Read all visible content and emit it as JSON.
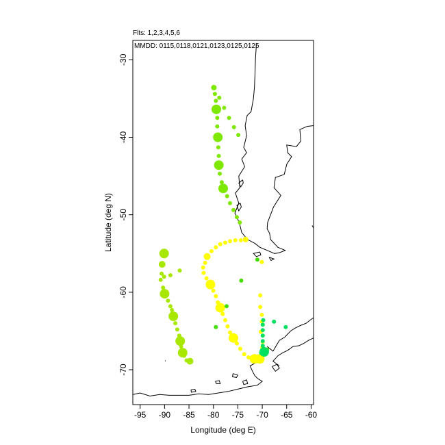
{
  "header": {
    "flights": "Flts: 1,2,3,4,5,6",
    "dates": "MMDD: 0115,0118,0121,0123,0125,0125"
  },
  "chart_data": {
    "type": "scatter",
    "title": "",
    "xlabel": "Longitude (deg E)",
    "ylabel": "Latitude (deg N)",
    "xlim": [
      -96.5,
      -59.5
    ],
    "ylim": [
      -74.5,
      -27.5
    ],
    "xticks": [
      -95,
      -90,
      -85,
      -80,
      -75,
      -70,
      -65,
      -60
    ],
    "yticks": [
      -30,
      -40,
      -50,
      -60,
      -70
    ],
    "xtick_labels": [
      "-95",
      "-90",
      "-85",
      "-80",
      "-75",
      "-70",
      "-65",
      "-60"
    ],
    "ytick_labels": [
      "-30",
      "-40",
      "-50",
      "-60",
      "-70"
    ],
    "grid": false,
    "legend": "none",
    "series": [
      {
        "color": "#7fe800",
        "points": [
          [
            -79.9,
            -33.6
          ],
          [
            -79.7,
            -34.4
          ],
          [
            -79.5,
            -35.3
          ],
          [
            -79.4,
            -36.4
          ],
          [
            -79.2,
            -37.5
          ],
          [
            -79.2,
            -38.6
          ],
          [
            -79.1,
            -40.0
          ],
          [
            -79.0,
            -41.3
          ],
          [
            -78.9,
            -42.4
          ],
          [
            -78.9,
            -43.6
          ],
          [
            -78.7,
            -44.7
          ],
          [
            -78.3,
            -45.8
          ],
          [
            -78.0,
            -46.6
          ],
          [
            -77.2,
            -47.6
          ],
          [
            -76.6,
            -48.5
          ],
          [
            -75.9,
            -49.4
          ],
          [
            -75.2,
            -50.3
          ],
          [
            -74.6,
            -51.0
          ],
          [
            -78.8,
            -34.9
          ],
          [
            -77.8,
            -36.2
          ],
          [
            -76.8,
            -37.5
          ],
          [
            -75.8,
            -38.7
          ],
          [
            -74.9,
            -39.7
          ]
        ],
        "sizes": [
          4,
          3,
          3,
          7,
          3,
          3,
          7,
          3,
          3,
          7,
          3,
          3,
          7,
          3,
          3,
          3,
          3,
          3,
          3,
          3,
          3,
          3,
          3
        ]
      },
      {
        "color": "#a8e800",
        "points": [
          [
            -90.1,
            -55.0
          ],
          [
            -90.5,
            -56.4
          ],
          [
            -90.6,
            -57.6
          ],
          [
            -90.8,
            -58.4
          ],
          [
            -90.3,
            -59.4
          ],
          [
            -90.0,
            -60.2
          ],
          [
            -89.3,
            -61.1
          ],
          [
            -88.8,
            -61.8
          ],
          [
            -88.5,
            -62.3
          ],
          [
            -88.2,
            -63.1
          ],
          [
            -87.8,
            -64.0
          ],
          [
            -87.4,
            -64.8
          ],
          [
            -87.0,
            -65.6
          ],
          [
            -86.8,
            -66.3
          ],
          [
            -86.6,
            -67.0
          ],
          [
            -86.3,
            -67.8
          ],
          [
            -86.0,
            -68.2
          ],
          [
            -85.5,
            -68.8
          ],
          [
            -84.8,
            -68.9
          ],
          [
            -88.8,
            -57.8
          ],
          [
            -86.9,
            -57.2
          ],
          [
            -90.1,
            -58.0
          ]
        ],
        "sizes": [
          7,
          5,
          3,
          3,
          3,
          7,
          3,
          3,
          3,
          7,
          3,
          3,
          3,
          7,
          3,
          7,
          3,
          3,
          5,
          3,
          3,
          3
        ]
      },
      {
        "color": "#ffff00",
        "points": [
          [
            -73.4,
            -53.2
          ],
          [
            -74.4,
            -53.3
          ],
          [
            -75.5,
            -53.3
          ],
          [
            -76.6,
            -53.4
          ],
          [
            -77.6,
            -53.6
          ],
          [
            -78.6,
            -53.8
          ],
          [
            -79.5,
            -54.2
          ],
          [
            -80.4,
            -54.7
          ],
          [
            -81.3,
            -55.4
          ],
          [
            -81.7,
            -56.2
          ],
          [
            -82.1,
            -56.8
          ],
          [
            -82.0,
            -57.5
          ],
          [
            -81.4,
            -58.2
          ],
          [
            -80.6,
            -59.0
          ],
          [
            -80.0,
            -59.8
          ],
          [
            -79.5,
            -60.5
          ],
          [
            -79.1,
            -61.3
          ],
          [
            -78.6,
            -62.0
          ],
          [
            -78.1,
            -62.8
          ],
          [
            -77.6,
            -63.6
          ],
          [
            -77.1,
            -64.4
          ],
          [
            -76.6,
            -65.2
          ],
          [
            -75.9,
            -65.9
          ],
          [
            -75.2,
            -66.6
          ],
          [
            -74.5,
            -67.3
          ],
          [
            -73.7,
            -68.0
          ],
          [
            -72.8,
            -68.4
          ],
          [
            -71.6,
            -68.6
          ],
          [
            -70.5,
            -68.6
          ],
          [
            -70.1,
            -68.3
          ],
          [
            -70.4,
            -60.4
          ],
          [
            -70.4,
            -61.9
          ],
          [
            -70.1,
            -56.1
          ],
          [
            -70.1,
            -62.9
          ],
          [
            -70.1,
            -63.8
          ],
          [
            -70.3,
            -65.1
          ],
          [
            -69.9,
            -66.4
          ],
          [
            -70.0,
            -67.1
          ]
        ],
        "sizes": [
          4,
          3,
          3,
          3,
          3,
          3,
          3,
          3,
          5,
          3,
          3,
          3,
          3,
          7,
          3,
          3,
          3,
          7,
          3,
          3,
          3,
          3,
          7,
          3,
          3,
          3,
          3,
          7,
          7,
          3,
          3,
          3,
          3,
          3,
          3,
          3,
          3,
          3
        ]
      },
      {
        "color": "#44dd00",
        "points": [
          [
            -71.0,
            -55.8
          ],
          [
            -79.5,
            -64.5
          ],
          [
            -77.3,
            -61.8
          ],
          [
            -74.3,
            -58.5
          ],
          [
            -69.0,
            -67.4
          ]
        ],
        "sizes": [
          3,
          3,
          3,
          3,
          3
        ]
      },
      {
        "color": "#00e060",
        "points": [
          [
            -69.6,
            -67.7
          ],
          [
            -69.9,
            -66.9
          ],
          [
            -69.9,
            -66.3
          ],
          [
            -69.9,
            -65.6
          ],
          [
            -69.9,
            -64.9
          ],
          [
            -69.9,
            -64.2
          ],
          [
            -69.8,
            -63.6
          ],
          [
            -67.6,
            -63.8
          ],
          [
            -65.2,
            -64.5
          ],
          [
            -70.1,
            -67.8
          ]
        ],
        "sizes": [
          7,
          3,
          3,
          3,
          3,
          3,
          3,
          3,
          3,
          4
        ]
      }
    ]
  },
  "map": {
    "coastlines": [
      [
        [
          -71.2,
          -28.0
        ],
        [
          -71.4,
          -30.0
        ],
        [
          -71.5,
          -32.0
        ],
        [
          -71.6,
          -33.5
        ],
        [
          -71.8,
          -35.0
        ],
        [
          -72.3,
          -36.7
        ],
        [
          -73.1,
          -37.2
        ],
        [
          -73.5,
          -38.5
        ],
        [
          -73.2,
          -39.8
        ],
        [
          -73.8,
          -41.3
        ],
        [
          -73.2,
          -42.0
        ],
        [
          -74.2,
          -42.8
        ],
        [
          -73.6,
          -43.8
        ],
        [
          -74.8,
          -45.0
        ],
        [
          -74.6,
          -46.5
        ],
        [
          -75.5,
          -47.2
        ],
        [
          -74.8,
          -48.5
        ],
        [
          -75.6,
          -49.8
        ],
        [
          -74.7,
          -51.0
        ],
        [
          -74.2,
          -52.3
        ],
        [
          -73.0,
          -53.2
        ],
        [
          -71.5,
          -53.7
        ],
        [
          -70.5,
          -54.2
        ],
        [
          -69.0,
          -54.6
        ],
        [
          -67.5,
          -55.0
        ],
        [
          -66.5,
          -54.9
        ],
        [
          -65.3,
          -54.6
        ],
        [
          -66.8,
          -54.2
        ],
        [
          -68.3,
          -53.2
        ],
        [
          -68.5,
          -52.4
        ],
        [
          -69.0,
          -51.8
        ],
        [
          -68.9,
          -51.0
        ],
        [
          -68.3,
          -50.0
        ],
        [
          -67.7,
          -49.0
        ],
        [
          -66.2,
          -47.5
        ],
        [
          -67.6,
          -46.5
        ],
        [
          -67.3,
          -45.2
        ],
        [
          -65.5,
          -44.8
        ],
        [
          -65.0,
          -43.5
        ],
        [
          -64.0,
          -42.5
        ],
        [
          -64.8,
          -42.0
        ],
        [
          -65.0,
          -41.0
        ],
        [
          -63.0,
          -41.2
        ],
        [
          -62.1,
          -40.5
        ],
        [
          -62.3,
          -39.0
        ],
        [
          -60.8,
          -38.6
        ],
        [
          -59.5,
          -38.5
        ]
      ],
      [
        [
          -69.9,
          -68.3
        ],
        [
          -71.0,
          -69.0
        ],
        [
          -72.5,
          -69.5
        ],
        [
          -72.0,
          -70.2
        ],
        [
          -71.5,
          -70.8
        ],
        [
          -70.8,
          -71.2
        ],
        [
          -70.0,
          -71.5
        ],
        [
          -71.0,
          -72.0
        ],
        [
          -73.0,
          -72.2
        ],
        [
          -75.0,
          -72.5
        ],
        [
          -77.0,
          -72.8
        ],
        [
          -79.0,
          -73.0
        ],
        [
          -81.0,
          -73.2
        ],
        [
          -83.0,
          -73.1
        ],
        [
          -85.0,
          -73.3
        ],
        [
          -87.0,
          -73.3
        ],
        [
          -89.0,
          -73.3
        ],
        [
          -91.0,
          -73.2
        ],
        [
          -93.0,
          -73.4
        ],
        [
          -95.0,
          -73.0
        ],
        [
          -96.5,
          -73.2
        ]
      ],
      [
        [
          -69.0,
          -67.0
        ],
        [
          -67.8,
          -67.6
        ],
        [
          -66.5,
          -66.2
        ],
        [
          -65.4,
          -65.8
        ],
        [
          -64.2,
          -65.0
        ],
        [
          -63.2,
          -64.6
        ],
        [
          -62.2,
          -64.3
        ],
        [
          -61.0,
          -64.0
        ],
        [
          -60.0,
          -63.5
        ],
        [
          -59.5,
          -63.3
        ]
      ],
      [
        [
          -66.5,
          -69.5
        ],
        [
          -67.8,
          -68.9
        ],
        [
          -66.8,
          -68.2
        ],
        [
          -65.8,
          -67.8
        ],
        [
          -64.8,
          -67.5
        ],
        [
          -63.7,
          -67.0
        ],
        [
          -62.5,
          -66.9
        ],
        [
          -61.5,
          -66.6
        ],
        [
          -60.5,
          -66.2
        ],
        [
          -59.5,
          -65.9
        ]
      ],
      [
        [
          -68.0,
          -69.6
        ],
        [
          -67.3,
          -70.2
        ],
        [
          -66.5,
          -69.8
        ],
        [
          -67.0,
          -69.3
        ],
        [
          -68.0,
          -69.6
        ]
      ],
      [
        [
          -59.8,
          -51.4
        ],
        [
          -59.5,
          -51.7
        ]
      ]
    ],
    "islands": [
      [
        [
          -74.5,
          -48.5
        ],
        [
          -75.2,
          -48.8
        ],
        [
          -74.8,
          -49.5
        ],
        [
          -74.3,
          -49.0
        ],
        [
          -74.5,
          -48.5
        ]
      ],
      [
        [
          -74.0,
          -45.5
        ],
        [
          -74.8,
          -45.9
        ],
        [
          -74.4,
          -46.4
        ],
        [
          -73.9,
          -45.9
        ],
        [
          -74.0,
          -45.5
        ]
      ],
      [
        [
          -70.5,
          -54.8
        ],
        [
          -71.8,
          -55.0
        ],
        [
          -71.2,
          -55.4
        ],
        [
          -70.3,
          -55.2
        ],
        [
          -70.5,
          -54.8
        ]
      ],
      [
        [
          -68.6,
          -55.5
        ],
        [
          -67.6,
          -55.7
        ],
        [
          -68.2,
          -55.9
        ],
        [
          -68.6,
          -55.5
        ]
      ],
      [
        [
          -80.0,
          -33.6
        ],
        [
          -79.9,
          -33.7
        ]
      ],
      [
        [
          -79.6,
          -71.5
        ],
        [
          -78.8,
          -71.4
        ],
        [
          -78.6,
          -71.8
        ],
        [
          -79.4,
          -71.8
        ],
        [
          -79.6,
          -71.5
        ]
      ],
      [
        [
          -76.0,
          -70.5
        ],
        [
          -75.0,
          -70.7
        ],
        [
          -75.3,
          -71.0
        ],
        [
          -76.1,
          -70.9
        ],
        [
          -76.0,
          -70.5
        ]
      ],
      [
        [
          -74.0,
          -71.5
        ],
        [
          -73.2,
          -71.3
        ],
        [
          -73.0,
          -71.8
        ],
        [
          -73.8,
          -71.9
        ],
        [
          -74.0,
          -71.5
        ]
      ],
      [
        [
          -84.6,
          -72.6
        ],
        [
          -83.8,
          -72.5
        ],
        [
          -83.6,
          -72.8
        ],
        [
          -84.5,
          -72.9
        ],
        [
          -84.6,
          -72.6
        ]
      ],
      [
        [
          -89.9,
          -68.8
        ],
        [
          -89.8,
          -68.9
        ]
      ],
      [
        [
          -79.8,
          -33.5
        ],
        [
          -79.7,
          -33.6
        ]
      ]
    ]
  }
}
